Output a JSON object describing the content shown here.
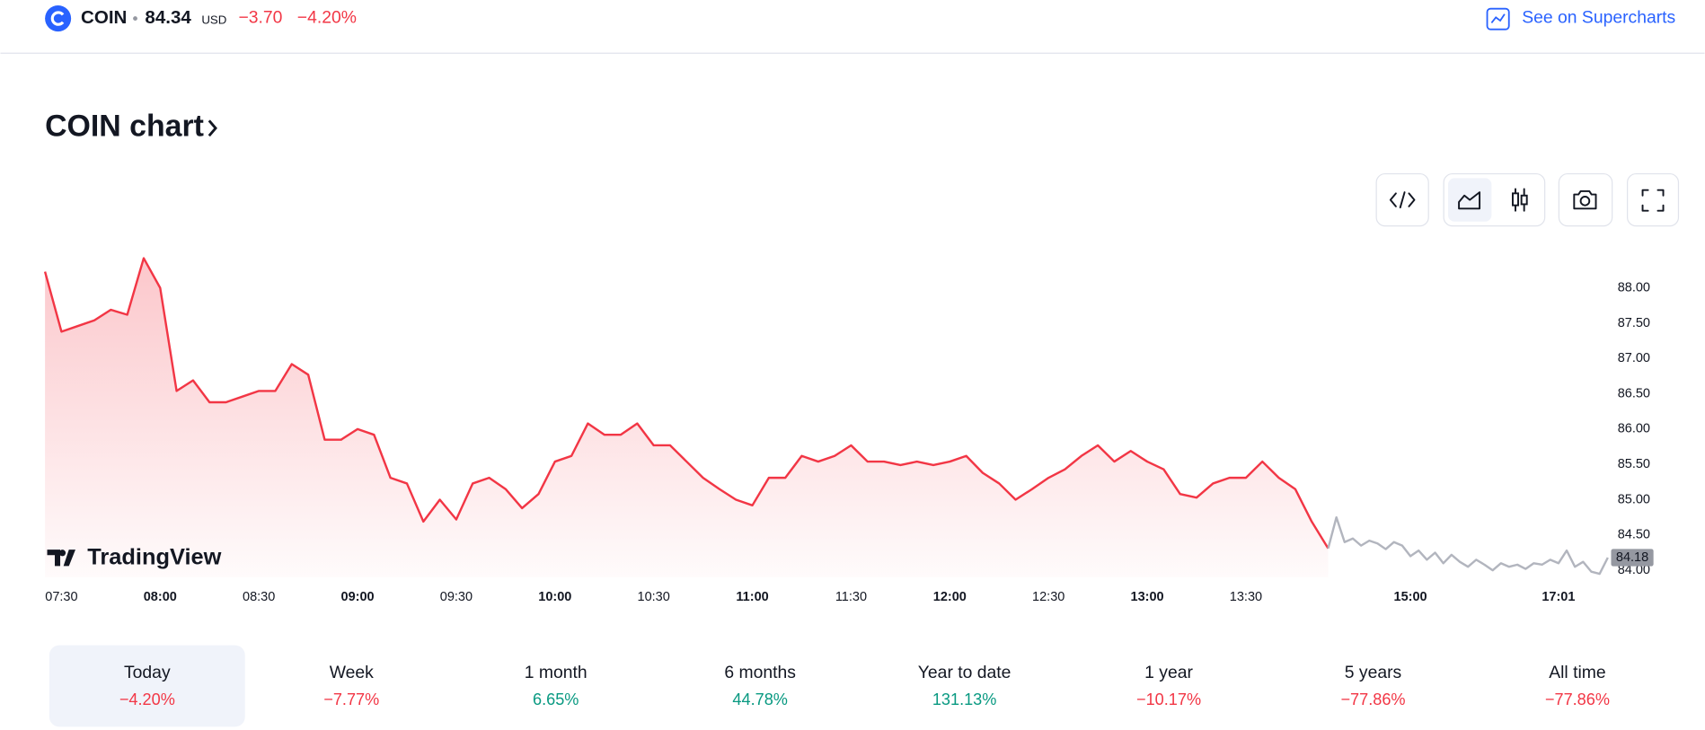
{
  "header": {
    "symbol": "COIN",
    "price": "84.34",
    "currency": "USD",
    "change": "−3.70",
    "change_percent": "−4.20%",
    "link": "See on Supercharts"
  },
  "chart_data": {
    "type": "line",
    "title": "COIN chart",
    "watermark": "TradingView",
    "series": [
      {
        "color": "#f23645",
        "fill": true,
        "x": [
          0,
          1,
          2,
          3,
          4,
          5,
          6,
          7,
          8,
          9,
          10,
          11,
          12,
          13,
          14,
          15,
          16,
          17,
          18,
          19,
          20,
          21,
          22,
          23,
          24,
          25,
          26,
          27,
          28,
          29,
          30,
          31,
          32,
          33,
          34,
          35,
          36,
          37,
          38,
          39,
          40,
          41,
          42,
          43,
          44,
          45,
          46,
          47,
          48,
          49,
          50,
          51,
          52,
          53,
          54,
          55,
          56,
          57,
          58,
          59,
          60,
          61,
          62,
          63,
          64,
          65,
          66,
          67,
          68,
          69,
          70,
          71,
          72,
          73,
          74,
          75,
          76,
          77,
          78
        ],
        "values": [
          88.23,
          87.38,
          87.46,
          87.54,
          87.69,
          87.62,
          88.42,
          88.0,
          86.54,
          86.69,
          86.38,
          86.38,
          86.46,
          86.54,
          86.54,
          86.92,
          86.77,
          85.85,
          85.85,
          86.0,
          85.92,
          85.31,
          85.23,
          84.69,
          85.0,
          84.72,
          85.23,
          85.31,
          85.15,
          84.88,
          85.08,
          85.54,
          85.62,
          86.08,
          85.92,
          85.92,
          86.08,
          85.77,
          85.77,
          85.54,
          85.31,
          85.15,
          85.0,
          84.92,
          85.31,
          85.31,
          85.62,
          85.54,
          85.62,
          85.77,
          85.54,
          85.54,
          85.49,
          85.54,
          85.49,
          85.54,
          85.62,
          85.38,
          85.23,
          85.0,
          85.15,
          85.31,
          85.43,
          85.62,
          85.77,
          85.54,
          85.69,
          85.54,
          85.43,
          85.08,
          85.03,
          85.23,
          85.31,
          85.31,
          85.54,
          85.31,
          85.15,
          84.69,
          84.31
        ]
      },
      {
        "color": "#b2b5be",
        "fill": false,
        "x": [
          78,
          78.5,
          79,
          79.5,
          80,
          80.5,
          81,
          81.5,
          82,
          82.5,
          83,
          83.5,
          84,
          84.5,
          85,
          85.5,
          86,
          86.5,
          87,
          87.5,
          88,
          88.5,
          89,
          89.5,
          90,
          90.5,
          91,
          91.5,
          92,
          92.5,
          93,
          93.5,
          94,
          94.5,
          95
        ],
        "values": [
          84.31,
          84.75,
          84.4,
          84.45,
          84.35,
          84.42,
          84.38,
          84.3,
          84.4,
          84.35,
          84.2,
          84.28,
          84.15,
          84.25,
          84.1,
          84.22,
          84.12,
          84.05,
          84.15,
          84.08,
          84.0,
          84.1,
          84.05,
          84.08,
          84.02,
          84.1,
          84.08,
          84.15,
          84.1,
          84.28,
          84.05,
          84.12,
          83.98,
          83.95,
          84.18
        ]
      }
    ],
    "last_price": 84.18,
    "xlim": [
      0,
      95
    ],
    "ylim": [
      83.9,
      88.5
    ],
    "xticks": [
      {
        "value": 1,
        "label": "07:30"
      },
      {
        "value": 7,
        "label": "08:00"
      },
      {
        "value": 13,
        "label": "08:30"
      },
      {
        "value": 19,
        "label": "09:00"
      },
      {
        "value": 25,
        "label": "09:30"
      },
      {
        "value": 31,
        "label": "10:00"
      },
      {
        "value": 37,
        "label": "10:30"
      },
      {
        "value": 43,
        "label": "11:00"
      },
      {
        "value": 49,
        "label": "11:30"
      },
      {
        "value": 55,
        "label": "12:00"
      },
      {
        "value": 61,
        "label": "12:30"
      },
      {
        "value": 67,
        "label": "13:00"
      },
      {
        "value": 73,
        "label": "13:30"
      },
      {
        "value": 83,
        "label": "15:00"
      },
      {
        "value": 92,
        "label": "17:01"
      }
    ],
    "yticks": [
      {
        "value": 84,
        "label": "84.00"
      },
      {
        "value": 84.5,
        "label": "84.50"
      },
      {
        "value": 85,
        "label": "85.00"
      },
      {
        "value": 85.5,
        "label": "85.50"
      },
      {
        "value": 86,
        "label": "86.00"
      },
      {
        "value": 86.5,
        "label": "86.50"
      },
      {
        "value": 87,
        "label": "87.00"
      },
      {
        "value": 87.5,
        "label": "87.50"
      },
      {
        "value": 88,
        "label": "88.00"
      }
    ]
  },
  "periods": [
    {
      "label": "Today",
      "change": "−4.20%"
    },
    {
      "label": "Week",
      "change": "−7.77%"
    },
    {
      "label": "1 month",
      "change": "6.65%"
    },
    {
      "label": "6 months",
      "change": "44.78%"
    },
    {
      "label": "Year to date",
      "change": "131.13%"
    },
    {
      "label": "1 year",
      "change": "−10.17%"
    },
    {
      "label": "5 years",
      "change": "−77.86%"
    },
    {
      "label": "All time",
      "change": "−77.86%"
    }
  ]
}
